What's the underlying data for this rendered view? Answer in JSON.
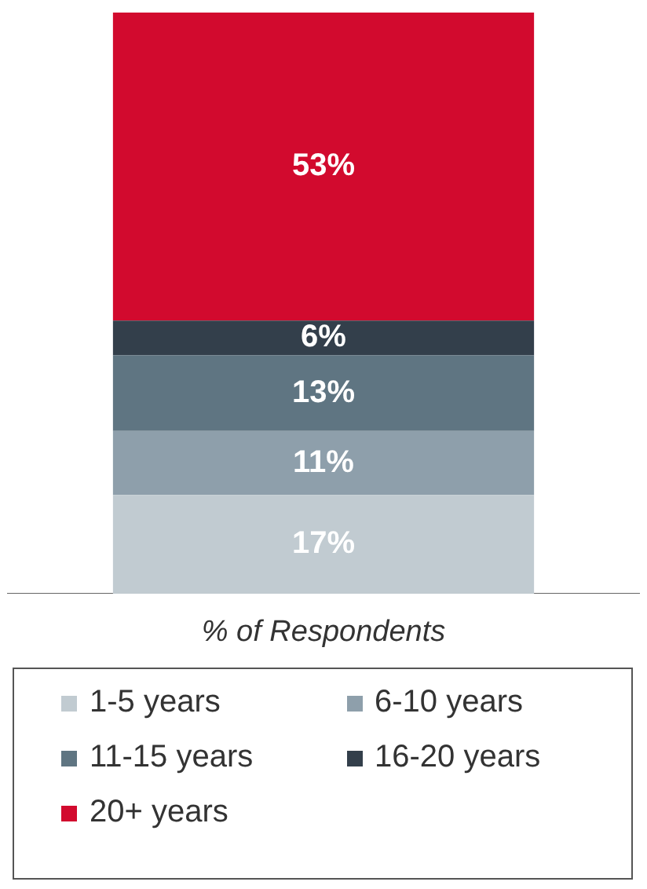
{
  "chart_data": {
    "type": "bar",
    "stacked": true,
    "categories": [
      null
    ],
    "xlabel": "% of Respondents",
    "legend": "bottom",
    "series": [
      {
        "name": "1-5 years",
        "color": "#c1cbd1",
        "values": [
          17
        ],
        "value_labels": [
          "17%"
        ]
      },
      {
        "name": "6-10 years",
        "color": "#8e9fab",
        "values": [
          11
        ],
        "value_labels": [
          "11%"
        ]
      },
      {
        "name": "11-15 years",
        "color": "#5f7582",
        "values": [
          13
        ],
        "value_labels": [
          "13%"
        ]
      },
      {
        "name": "16-20 years",
        "color": "#333f4b",
        "values": [
          6
        ],
        "value_labels": [
          "6%"
        ]
      },
      {
        "name": "20+ years",
        "color": "#d20a2e",
        "values": [
          53
        ],
        "value_labels": [
          "53%"
        ]
      }
    ]
  }
}
